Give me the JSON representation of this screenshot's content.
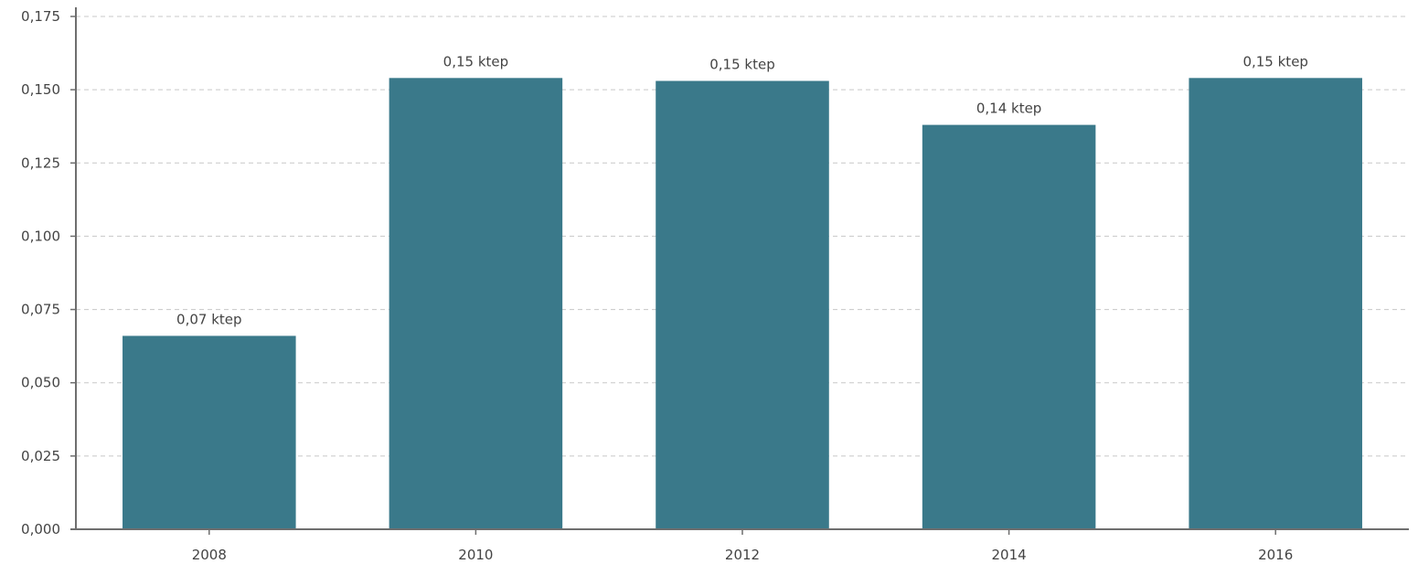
{
  "chart_data": {
    "type": "bar",
    "title": "",
    "xlabel": "",
    "ylabel": "",
    "categories": [
      "2008",
      "2010",
      "2012",
      "2014",
      "2016"
    ],
    "values": [
      0.066,
      0.154,
      0.153,
      0.138,
      0.154
    ],
    "data_labels": [
      "0,07 ktep",
      "0,15 ktep",
      "0,15 ktep",
      "0,14 ktep",
      "0,15 ktep"
    ],
    "ylim": [
      0,
      0.175
    ],
    "yticks": [
      0,
      0.025,
      0.05,
      0.075,
      0.1,
      0.125,
      0.15,
      0.175
    ],
    "ytick_labels": [
      "0,000",
      "0,025",
      "0,050",
      "0,075",
      "0,100",
      "0,125",
      "0,150",
      "0,175"
    ],
    "grid": true,
    "legend": "none",
    "colors": {
      "bar": "#3a798a",
      "axis": "#6e6e6e",
      "grid": "#c8c8c8",
      "text": "#444444"
    }
  }
}
